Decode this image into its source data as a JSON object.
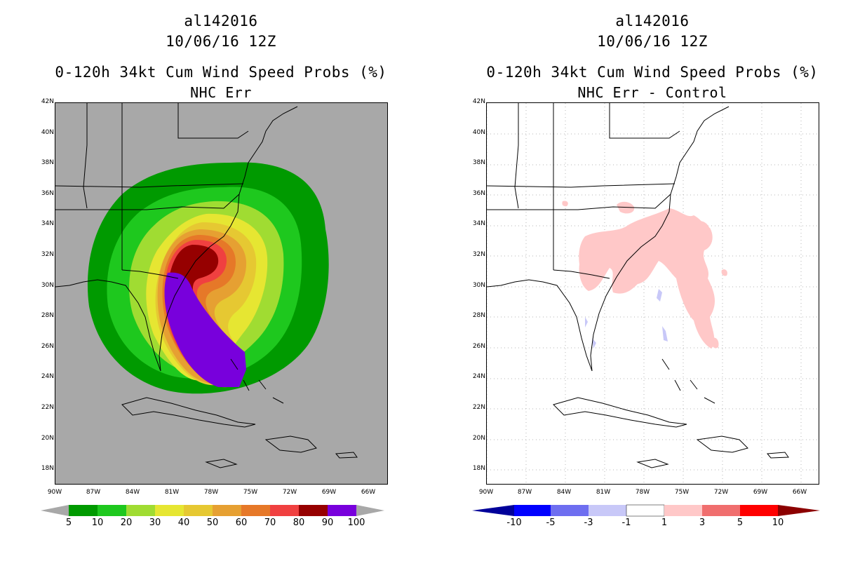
{
  "left": {
    "title_line1": "al142016",
    "title_line2": "10/06/16 12Z",
    "title_line3": "0-120h 34kt Cum Wind Speed Probs (%)",
    "title_line4": "NHC Err",
    "map_background": "#a8a8a8",
    "colorbar": {
      "colors": [
        "#009a00",
        "#1ec81e",
        "#a0dc32",
        "#e6e632",
        "#e6c832",
        "#e6a032",
        "#e67828",
        "#f04040",
        "#960000",
        "#7800dc"
      ],
      "end_color": "#a8a8a8",
      "labels": [
        "5",
        "10",
        "20",
        "30",
        "40",
        "50",
        "60",
        "70",
        "80",
        "90",
        "100"
      ]
    }
  },
  "right": {
    "title_line1": "al142016",
    "title_line2": "10/06/16 12Z",
    "title_line3": "0-120h 34kt Cum Wind Speed Probs (%)",
    "title_line4": "NHC Err - Control",
    "map_background": "#ffffff",
    "colorbar": {
      "colors": [
        "#0000ff",
        "#6e6ef0",
        "#c8c8f8",
        "#ffffff",
        "#ffc8c8",
        "#f06e6e",
        "#ff0000"
      ],
      "low_end_color": "#00009a",
      "high_end_color": "#8c0000",
      "labels": [
        "-10",
        "-5",
        "-3",
        "-1",
        "1",
        "3",
        "5",
        "10"
      ]
    }
  },
  "lat_labels": [
    "42N",
    "40N",
    "38N",
    "36N",
    "34N",
    "32N",
    "30N",
    "28N",
    "26N",
    "24N",
    "22N",
    "20N",
    "18N"
  ],
  "lon_labels": [
    "90W",
    "87W",
    "84W",
    "81W",
    "78W",
    "75W",
    "72W",
    "69W",
    "66W"
  ]
}
